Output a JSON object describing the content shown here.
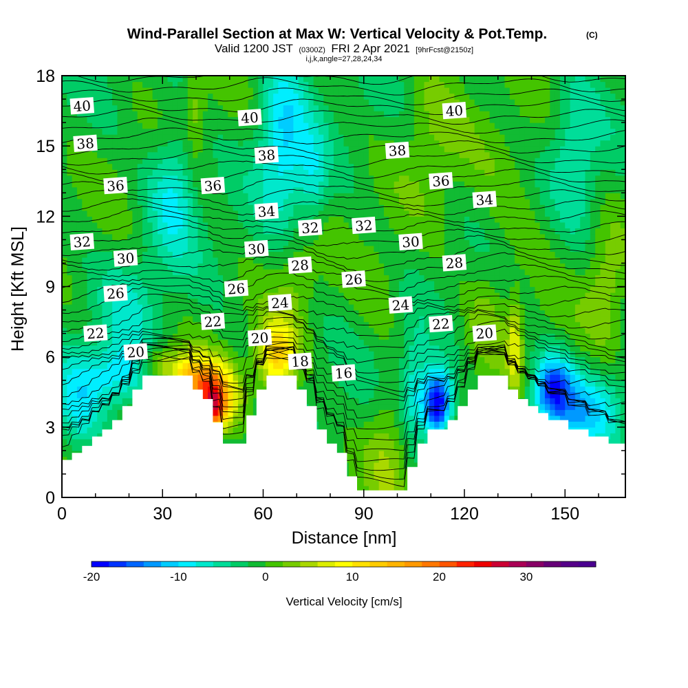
{
  "chart_data": {
    "type": "heatmap",
    "title": "Wind-Parallel Section at Max W: Vertical Velocity & Pot.Temp.",
    "title_suffix": "(C)",
    "subtitle_pre": "Valid 1200 JST",
    "subtitle_utc": "(0300Z)",
    "subtitle_date": "FRI 2 Apr 2021",
    "subtitle_fcst": "[9hrFcst@2150z]",
    "subtitle2": "i,j,k,angle=27,28,24,34",
    "xlabel": "Distance [nm]",
    "ylabel": "Height [Kft MSL]",
    "xlim": [
      0,
      168
    ],
    "ylim": [
      0,
      18
    ],
    "x_ticks": [
      0,
      30,
      60,
      90,
      120,
      150
    ],
    "y_ticks": [
      0,
      3,
      6,
      9,
      12,
      15,
      18
    ],
    "terrain": [
      [
        0,
        1.6
      ],
      [
        3,
        1.6
      ],
      [
        3,
        1.9
      ],
      [
        6,
        1.9
      ],
      [
        6,
        2.2
      ],
      [
        9,
        2.2
      ],
      [
        9,
        2.6
      ],
      [
        12,
        2.6
      ],
      [
        12,
        2.9
      ],
      [
        15,
        2.9
      ],
      [
        15,
        3.3
      ],
      [
        18,
        3.3
      ],
      [
        18,
        3.9
      ],
      [
        21,
        3.9
      ],
      [
        21,
        4.6
      ],
      [
        24,
        4.6
      ],
      [
        24,
        5.2
      ],
      [
        39,
        5.2
      ],
      [
        39,
        4.6
      ],
      [
        42,
        4.6
      ],
      [
        42,
        4.2
      ],
      [
        45,
        4.2
      ],
      [
        45,
        3.2
      ],
      [
        48,
        3.2
      ],
      [
        48,
        2.3
      ],
      [
        55,
        2.3
      ],
      [
        55,
        3.5
      ],
      [
        58,
        3.5
      ],
      [
        58,
        4.6
      ],
      [
        61,
        4.6
      ],
      [
        61,
        5.2
      ],
      [
        70,
        5.2
      ],
      [
        70,
        4.6
      ],
      [
        73,
        4.6
      ],
      [
        73,
        3.9
      ],
      [
        76,
        3.9
      ],
      [
        76,
        2.9
      ],
      [
        79,
        2.9
      ],
      [
        79,
        2.3
      ],
      [
        82,
        2.3
      ],
      [
        82,
        1.9
      ],
      [
        85,
        1.9
      ],
      [
        85,
        0.9
      ],
      [
        88,
        0.9
      ],
      [
        88,
        0.3
      ],
      [
        103,
        0.3
      ],
      [
        103,
        1.3
      ],
      [
        106,
        1.3
      ],
      [
        106,
        2.3
      ],
      [
        109,
        2.3
      ],
      [
        109,
        2.9
      ],
      [
        115,
        2.9
      ],
      [
        115,
        3.3
      ],
      [
        118,
        3.3
      ],
      [
        118,
        3.9
      ],
      [
        121,
        3.9
      ],
      [
        121,
        4.6
      ],
      [
        124,
        4.6
      ],
      [
        124,
        5.2
      ],
      [
        133,
        5.2
      ],
      [
        133,
        4.6
      ],
      [
        136,
        4.6
      ],
      [
        136,
        4.2
      ],
      [
        139,
        4.2
      ],
      [
        139,
        3.9
      ],
      [
        142,
        3.9
      ],
      [
        142,
        3.6
      ],
      [
        145,
        3.6
      ],
      [
        145,
        3.3
      ],
      [
        151,
        3.3
      ],
      [
        151,
        2.9
      ],
      [
        157,
        2.9
      ],
      [
        157,
        2.6
      ],
      [
        163,
        2.6
      ],
      [
        163,
        2.3
      ],
      [
        168,
        2.3
      ]
    ],
    "background_w": -1,
    "w_features": [
      {
        "x": 44,
        "y": 4.4,
        "sx": 5,
        "sy": 0.9,
        "w": 22
      },
      {
        "x": 46,
        "y": 3.6,
        "sx": 2,
        "sy": 0.6,
        "w": 10
      },
      {
        "x": 64,
        "y": 6.0,
        "sx": 4,
        "sy": 1.1,
        "w": 13
      },
      {
        "x": 36,
        "y": 5.4,
        "sx": 5,
        "sy": 0.6,
        "w": 8
      },
      {
        "x": 28,
        "y": 5.8,
        "sx": 3,
        "sy": 0.5,
        "w": 5
      },
      {
        "x": 112,
        "y": 4.0,
        "sx": 3,
        "sy": 1.0,
        "w": -21
      },
      {
        "x": 146,
        "y": 4.7,
        "sx": 4,
        "sy": 1.0,
        "w": -14
      },
      {
        "x": 155,
        "y": 3.8,
        "sx": 8,
        "sy": 1.1,
        "w": -9
      },
      {
        "x": 135,
        "y": 6.5,
        "sx": 1.5,
        "sy": 1.5,
        "w": 7
      },
      {
        "x": 17,
        "y": 5.2,
        "sx": 7,
        "sy": 1.0,
        "w": -8
      },
      {
        "x": 5,
        "y": 4.0,
        "sx": 5,
        "sy": 1.5,
        "w": -6
      },
      {
        "x": 105,
        "y": 4.5,
        "sx": 3,
        "sy": 1.5,
        "w": -7
      },
      {
        "x": 97,
        "y": 2.0,
        "sx": 4,
        "sy": 2.0,
        "w": 4
      },
      {
        "x": 66,
        "y": 15.5,
        "sx": 5,
        "sy": 2.5,
        "w": -9
      },
      {
        "x": 33,
        "y": 13.0,
        "sx": 5,
        "sy": 2.0,
        "w": -7
      },
      {
        "x": 75,
        "y": 13.5,
        "sx": 3,
        "sy": 1.5,
        "w": -5
      },
      {
        "x": 40,
        "y": 16.5,
        "sx": 2,
        "sy": 1.5,
        "w": 4
      },
      {
        "x": 110,
        "y": 16.0,
        "sx": 6,
        "sy": 2.5,
        "w": 3
      },
      {
        "x": 135,
        "y": 12.0,
        "sx": 10,
        "sy": 3.0,
        "w": 2
      },
      {
        "x": 153,
        "y": 15.0,
        "sx": 5,
        "sy": 2.5,
        "w": -5
      },
      {
        "x": 20,
        "y": 8.0,
        "sx": 6,
        "sy": 1.5,
        "w": -4
      },
      {
        "x": 70,
        "y": 9.5,
        "sx": 4,
        "sy": 1.5,
        "w": 3
      },
      {
        "x": 126,
        "y": 7.5,
        "sx": 4,
        "sy": 1.5,
        "w": 3
      },
      {
        "x": 95,
        "y": 9.0,
        "sx": 5,
        "sy": 1.5,
        "w": 2
      },
      {
        "x": 162,
        "y": 9.0,
        "sx": 4,
        "sy": 2.0,
        "w": 4
      }
    ],
    "theta_contour_labels": [
      {
        "x": 6,
        "y": 16.7,
        "value": "40"
      },
      {
        "x": 56,
        "y": 16.2,
        "value": "40"
      },
      {
        "x": 117,
        "y": 16.5,
        "value": "40"
      },
      {
        "x": 7,
        "y": 15.1,
        "value": "38"
      },
      {
        "x": 61,
        "y": 14.6,
        "value": "38"
      },
      {
        "x": 100,
        "y": 14.8,
        "value": "38"
      },
      {
        "x": 16,
        "y": 13.3,
        "value": "36"
      },
      {
        "x": 45,
        "y": 13.3,
        "value": "36"
      },
      {
        "x": 113,
        "y": 13.5,
        "value": "36"
      },
      {
        "x": 61,
        "y": 12.2,
        "value": "34"
      },
      {
        "x": 126,
        "y": 12.7,
        "value": "34"
      },
      {
        "x": 74,
        "y": 11.5,
        "value": "32"
      },
      {
        "x": 90,
        "y": 11.6,
        "value": "32"
      },
      {
        "x": 6,
        "y": 10.9,
        "value": "32"
      },
      {
        "x": 19,
        "y": 10.2,
        "value": "30"
      },
      {
        "x": 58,
        "y": 10.6,
        "value": "30"
      },
      {
        "x": 104,
        "y": 10.9,
        "value": "30"
      },
      {
        "x": 71,
        "y": 9.9,
        "value": "28"
      },
      {
        "x": 117,
        "y": 10.0,
        "value": "28"
      },
      {
        "x": 16,
        "y": 8.7,
        "value": "26"
      },
      {
        "x": 52,
        "y": 8.9,
        "value": "26"
      },
      {
        "x": 87,
        "y": 9.3,
        "value": "26"
      },
      {
        "x": 65,
        "y": 8.3,
        "value": "24"
      },
      {
        "x": 101,
        "y": 8.2,
        "value": "24"
      },
      {
        "x": 10,
        "y": 7.0,
        "value": "22"
      },
      {
        "x": 45,
        "y": 7.5,
        "value": "22"
      },
      {
        "x": 113,
        "y": 7.4,
        "value": "22"
      },
      {
        "x": 22,
        "y": 6.2,
        "value": "20"
      },
      {
        "x": 59,
        "y": 6.8,
        "value": "20"
      },
      {
        "x": 126,
        "y": 7.0,
        "value": "20"
      },
      {
        "x": 71,
        "y": 5.8,
        "value": "18"
      },
      {
        "x": 84,
        "y": 5.3,
        "value": "16"
      }
    ],
    "colorbar": {
      "label": "Vertical Velocity [cm/s]",
      "min": -20,
      "max": 38,
      "step": 2,
      "tick_values": [
        -20,
        -10,
        0,
        10,
        20,
        30
      ],
      "tick_labels": [
        "-20",
        "-10",
        "0",
        "10",
        "20",
        "30"
      ],
      "colors": [
        "#0000ff",
        "#0033ff",
        "#0066ff",
        "#0099ff",
        "#00ccff",
        "#00eeff",
        "#00e8cc",
        "#00dd99",
        "#00cc66",
        "#11bb33",
        "#44c400",
        "#77cc00",
        "#aad800",
        "#ddee00",
        "#ffff00",
        "#ffe100",
        "#ffcc00",
        "#ffb400",
        "#ff9900",
        "#ff7700",
        "#ff5500",
        "#ff2200",
        "#ee0000",
        "#cc0033",
        "#aa0055",
        "#880066",
        "#660077",
        "#550088",
        "#4b0090"
      ]
    }
  }
}
